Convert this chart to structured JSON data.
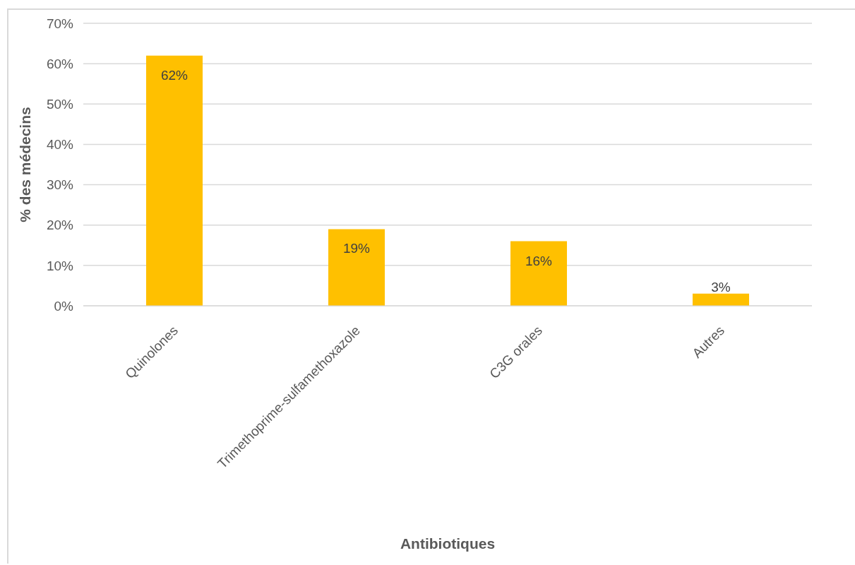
{
  "chart_data": {
    "type": "bar",
    "categories": [
      "Quinolones",
      "Trimethoprime-sulfamethoxazole",
      "C3G orales",
      "Autres"
    ],
    "values": [
      62,
      19,
      16,
      3
    ],
    "color": "#ffc000",
    "value_labels": [
      "62%",
      "19%",
      "16%",
      "3%"
    ],
    "xlabel": "Antibiotiques",
    "ylabel": "% des médecins",
    "ylim": [
      0,
      70
    ],
    "yticks": [
      {
        "value": 0,
        "label": "0%"
      },
      {
        "value": 10,
        "label": "10%"
      },
      {
        "value": 20,
        "label": "20%"
      },
      {
        "value": 30,
        "label": "30%"
      },
      {
        "value": 40,
        "label": "40%"
      },
      {
        "value": 50,
        "label": "50%"
      },
      {
        "value": 60,
        "label": "60%"
      },
      {
        "value": 70,
        "label": "70%"
      }
    ],
    "grid": "y"
  }
}
